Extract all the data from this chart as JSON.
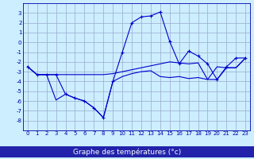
{
  "x": [
    0,
    1,
    2,
    3,
    4,
    5,
    6,
    7,
    8,
    9,
    10,
    11,
    12,
    13,
    14,
    15,
    16,
    17,
    18,
    19,
    20,
    21,
    22,
    23
  ],
  "line_main": [
    -2.5,
    -3.3,
    -3.3,
    -3.3,
    -3.3,
    -3.3,
    -3.3,
    -3.3,
    -3.3,
    -3.2,
    -3.0,
    -2.8,
    -2.6,
    -2.4,
    -2.2,
    -2.0,
    -2.1,
    -2.2,
    -2.1,
    -3.8,
    -2.5,
    -2.6,
    -2.6,
    -1.6
  ],
  "line_upper": [
    -2.5,
    -3.3,
    -3.3,
    -3.3,
    -5.3,
    -5.7,
    -6.0,
    -6.7,
    -7.7,
    -4.0,
    -1.0,
    2.0,
    2.6,
    2.7,
    3.1,
    0.1,
    -2.2,
    -0.9,
    -1.4,
    -2.2,
    -3.8,
    -2.5,
    -1.6,
    -1.6
  ],
  "line_lower": [
    -2.5,
    -3.3,
    -3.3,
    -5.9,
    -5.3,
    -5.7,
    -6.0,
    -6.7,
    -7.7,
    -4.0,
    -3.5,
    -3.2,
    -3.0,
    -2.9,
    -3.5,
    -3.6,
    -3.5,
    -3.7,
    -3.6,
    -3.8,
    -3.8,
    -2.6,
    -2.6,
    -1.6
  ],
  "background_color": "#cceeff",
  "grid_color": "#99aacc",
  "line_color": "#0000cc",
  "xlabel": "Graphe des températures (°c)",
  "xlabel_bg": "#2222aa",
  "xlabel_fg": "#ffffff",
  "ylim": [
    -9,
    4
  ],
  "xlim": [
    -0.5,
    23.5
  ],
  "yticks": [
    3,
    2,
    1,
    0,
    -1,
    -2,
    -3,
    -4,
    -5,
    -6,
    -7,
    -8
  ],
  "xticks": [
    0,
    1,
    2,
    3,
    4,
    5,
    6,
    7,
    8,
    9,
    10,
    11,
    12,
    13,
    14,
    15,
    16,
    17,
    18,
    19,
    20,
    21,
    22,
    23
  ],
  "tick_fontsize": 5,
  "label_fontsize": 6.5
}
